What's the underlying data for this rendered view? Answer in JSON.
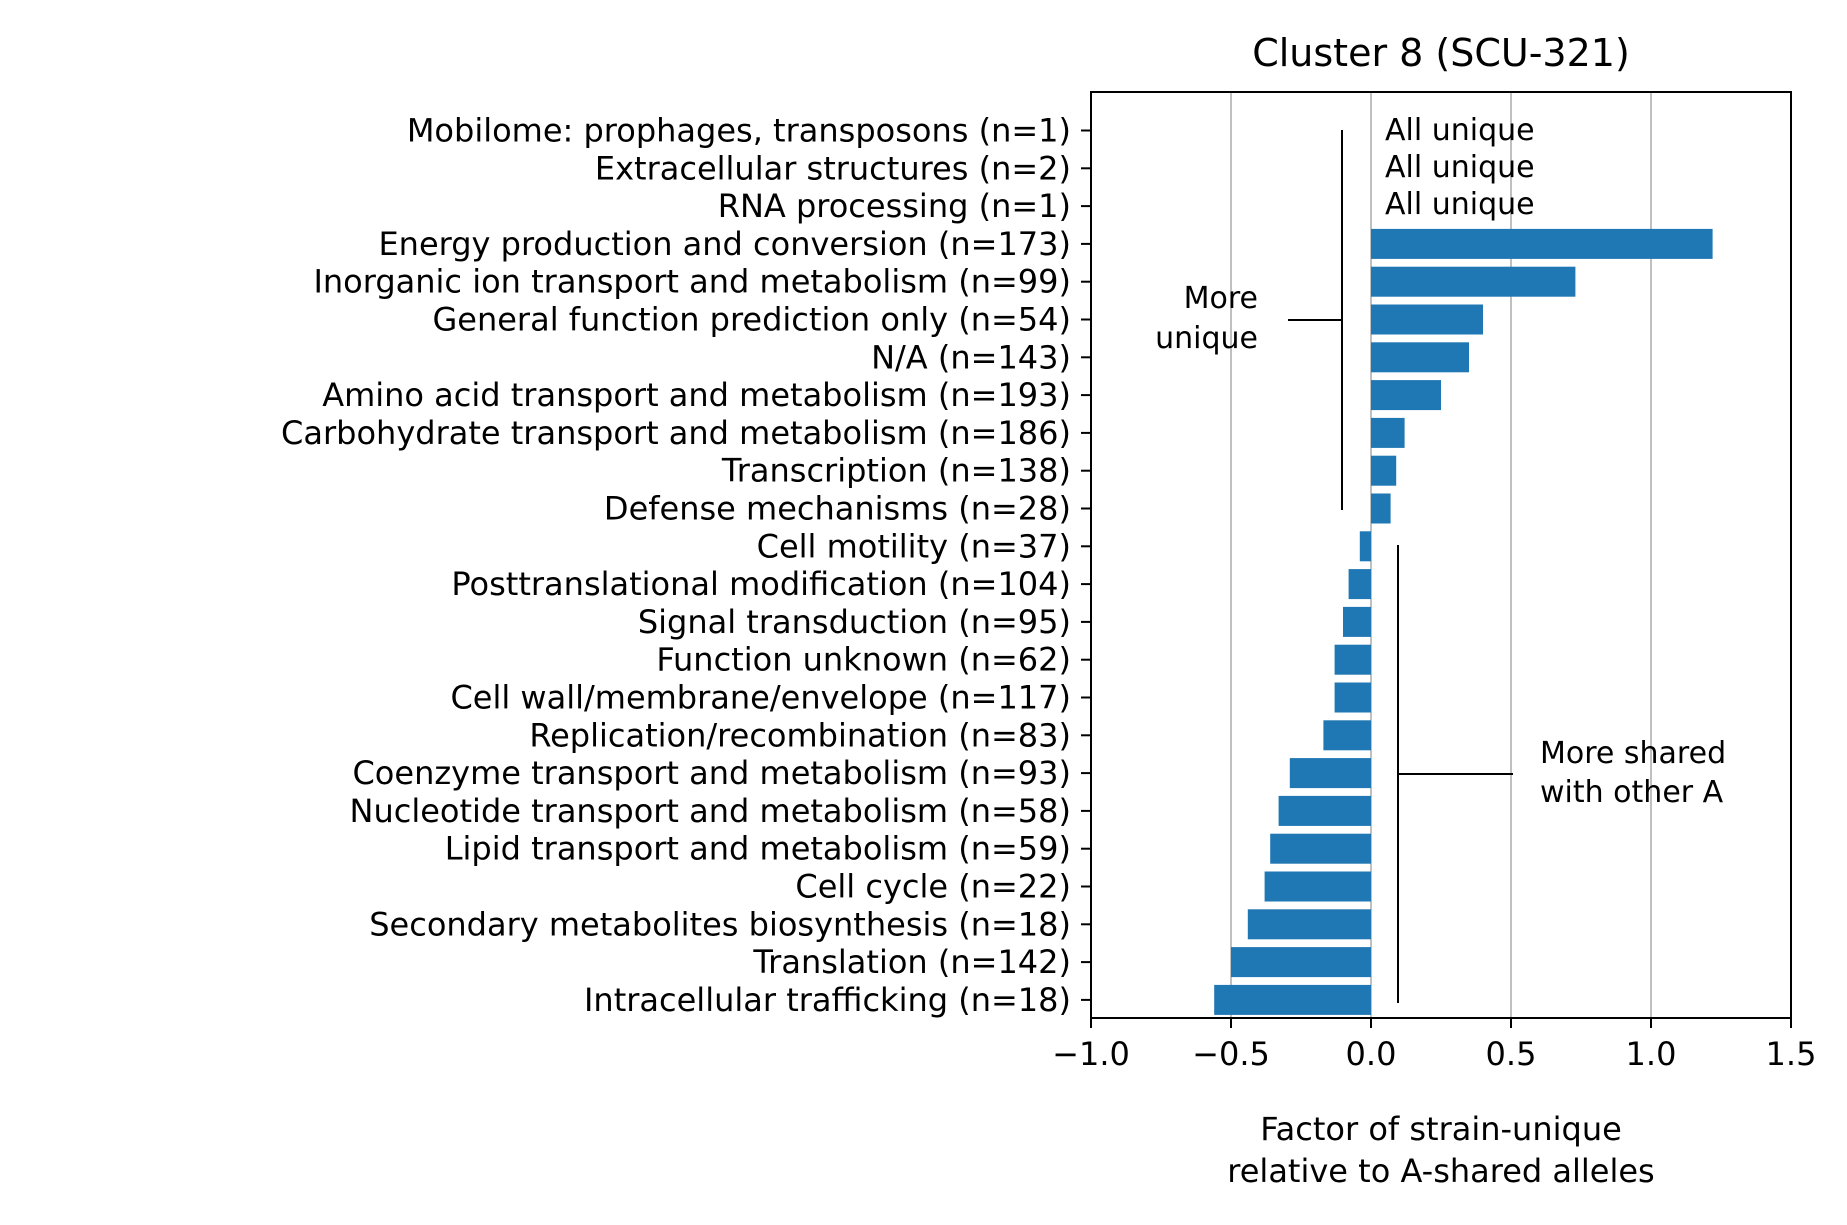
{
  "chart_data": {
    "type": "bar",
    "orientation": "horizontal",
    "title": "Cluster 8 (SCU-321)",
    "xlabel": [
      "Factor of strain-unique",
      "relative to A-shared alleles"
    ],
    "ylabel": "",
    "xlim": [
      -1.0,
      1.5
    ],
    "xticks": [
      -1.0,
      -0.5,
      0.0,
      0.5,
      1.0,
      1.5
    ],
    "xtick_labels": [
      "−1.0",
      "−0.5",
      "0.0",
      "0.5",
      "1.0",
      "1.5"
    ],
    "grid": "vertical",
    "bar_color": "#1f77b4",
    "categories": [
      "Mobilome: prophages, transposons (n=1)",
      "Extracellular structures (n=2)",
      "RNA processing (n=1)",
      "Energy production and conversion (n=173)",
      "Inorganic ion transport and metabolism (n=99)",
      "General function prediction only (n=54)",
      "N/A (n=143)",
      "Amino acid transport and metabolism (n=193)",
      "Carbohydrate transport and metabolism (n=186)",
      "Transcription (n=138)",
      "Defense mechanisms (n=28)",
      "Cell motility (n=37)",
      "Posttranslational modification (n=104)",
      "Signal transduction (n=95)",
      "Function unknown (n=62)",
      "Cell wall/membrane/envelope (n=117)",
      "Replication/recombination (n=83)",
      "Coenzyme transport and metabolism (n=93)",
      "Nucleotide transport and metabolism (n=58)",
      "Lipid transport and metabolism (n=59)",
      "Cell cycle (n=22)",
      "Secondary metabolites biosynthesis (n=18)",
      "Translation (n=142)",
      "Intracellular trafficking (n=18)"
    ],
    "values": [
      null,
      null,
      null,
      1.22,
      0.73,
      0.4,
      0.35,
      0.25,
      0.12,
      0.09,
      0.07,
      -0.04,
      -0.08,
      -0.1,
      -0.13,
      -0.13,
      -0.17,
      -0.29,
      -0.33,
      -0.36,
      -0.38,
      -0.44,
      -0.5,
      -0.56
    ],
    "annotations": {
      "all_unique_label": "All unique",
      "more_unique_label": [
        "More",
        "unique"
      ],
      "more_shared_label": [
        "More shared",
        "with other A"
      ]
    }
  }
}
